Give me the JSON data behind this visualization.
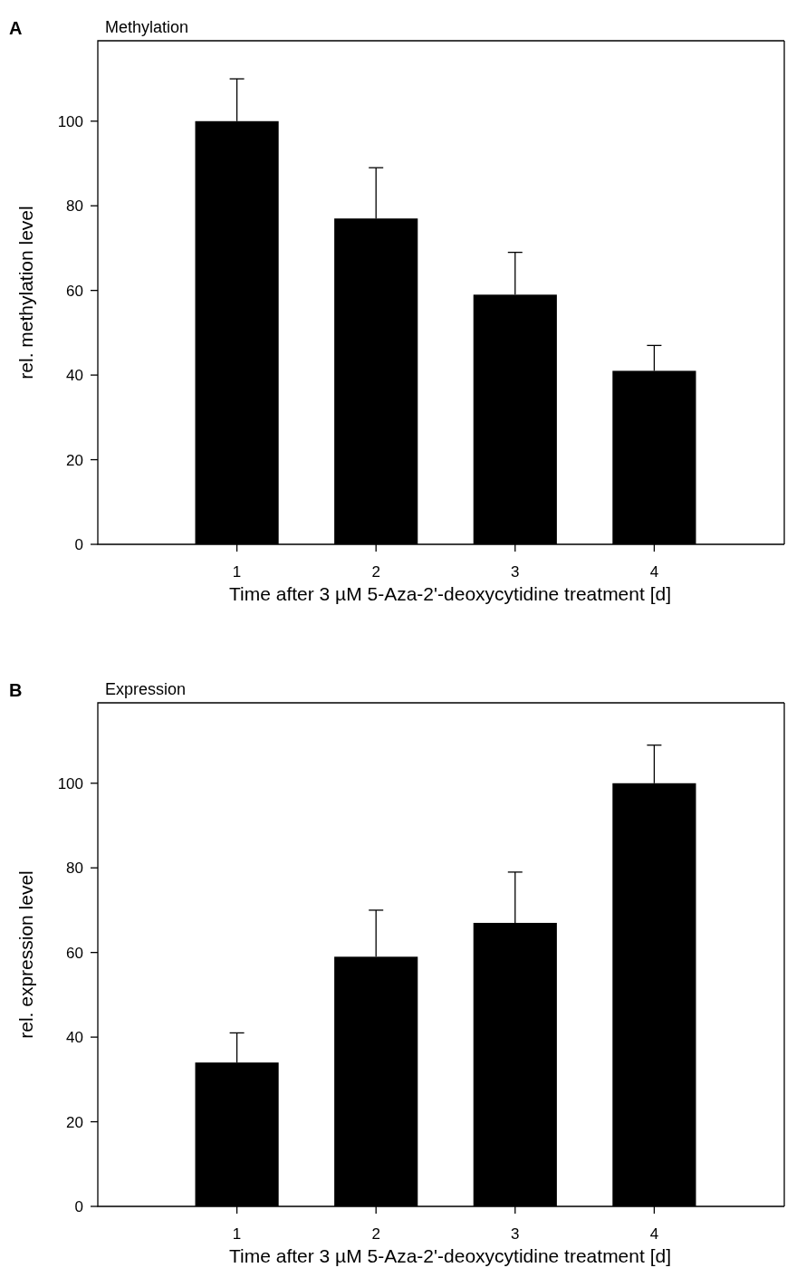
{
  "chart_data": [
    {
      "type": "bar",
      "title": "Methylation",
      "xlabel": "Time after 3 µM 5-Aza-2'-deoxycytidine treatment [d]",
      "ylabel": "rel. methylation level",
      "annotations": [
        "A"
      ],
      "categories": [
        "1",
        "2",
        "3",
        "4"
      ],
      "values": [
        100,
        77,
        59,
        41
      ],
      "errors": [
        [
          100,
          110
        ],
        [
          77,
          89
        ],
        [
          59,
          69
        ],
        [
          41,
          47
        ]
      ],
      "color": "#000000",
      "ylim": [
        0,
        119
      ],
      "yticks": [
        0,
        20,
        40,
        60,
        80,
        100
      ]
    },
    {
      "type": "bar",
      "title": "Expression",
      "xlabel": "Time after 3 µM 5-Aza-2'-deoxycytidine treatment [d]",
      "ylabel": "rel. expression level",
      "annotations": [
        "B"
      ],
      "categories": [
        "1",
        "2",
        "3",
        "4"
      ],
      "values": [
        34,
        59,
        67,
        100
      ],
      "errors": [
        [
          34,
          41
        ],
        [
          59,
          70
        ],
        [
          67,
          79
        ],
        [
          100,
          109
        ]
      ],
      "color": "#000000",
      "ylim": [
        0,
        119
      ],
      "yticks": [
        0,
        20,
        40,
        60,
        80,
        100
      ]
    }
  ]
}
